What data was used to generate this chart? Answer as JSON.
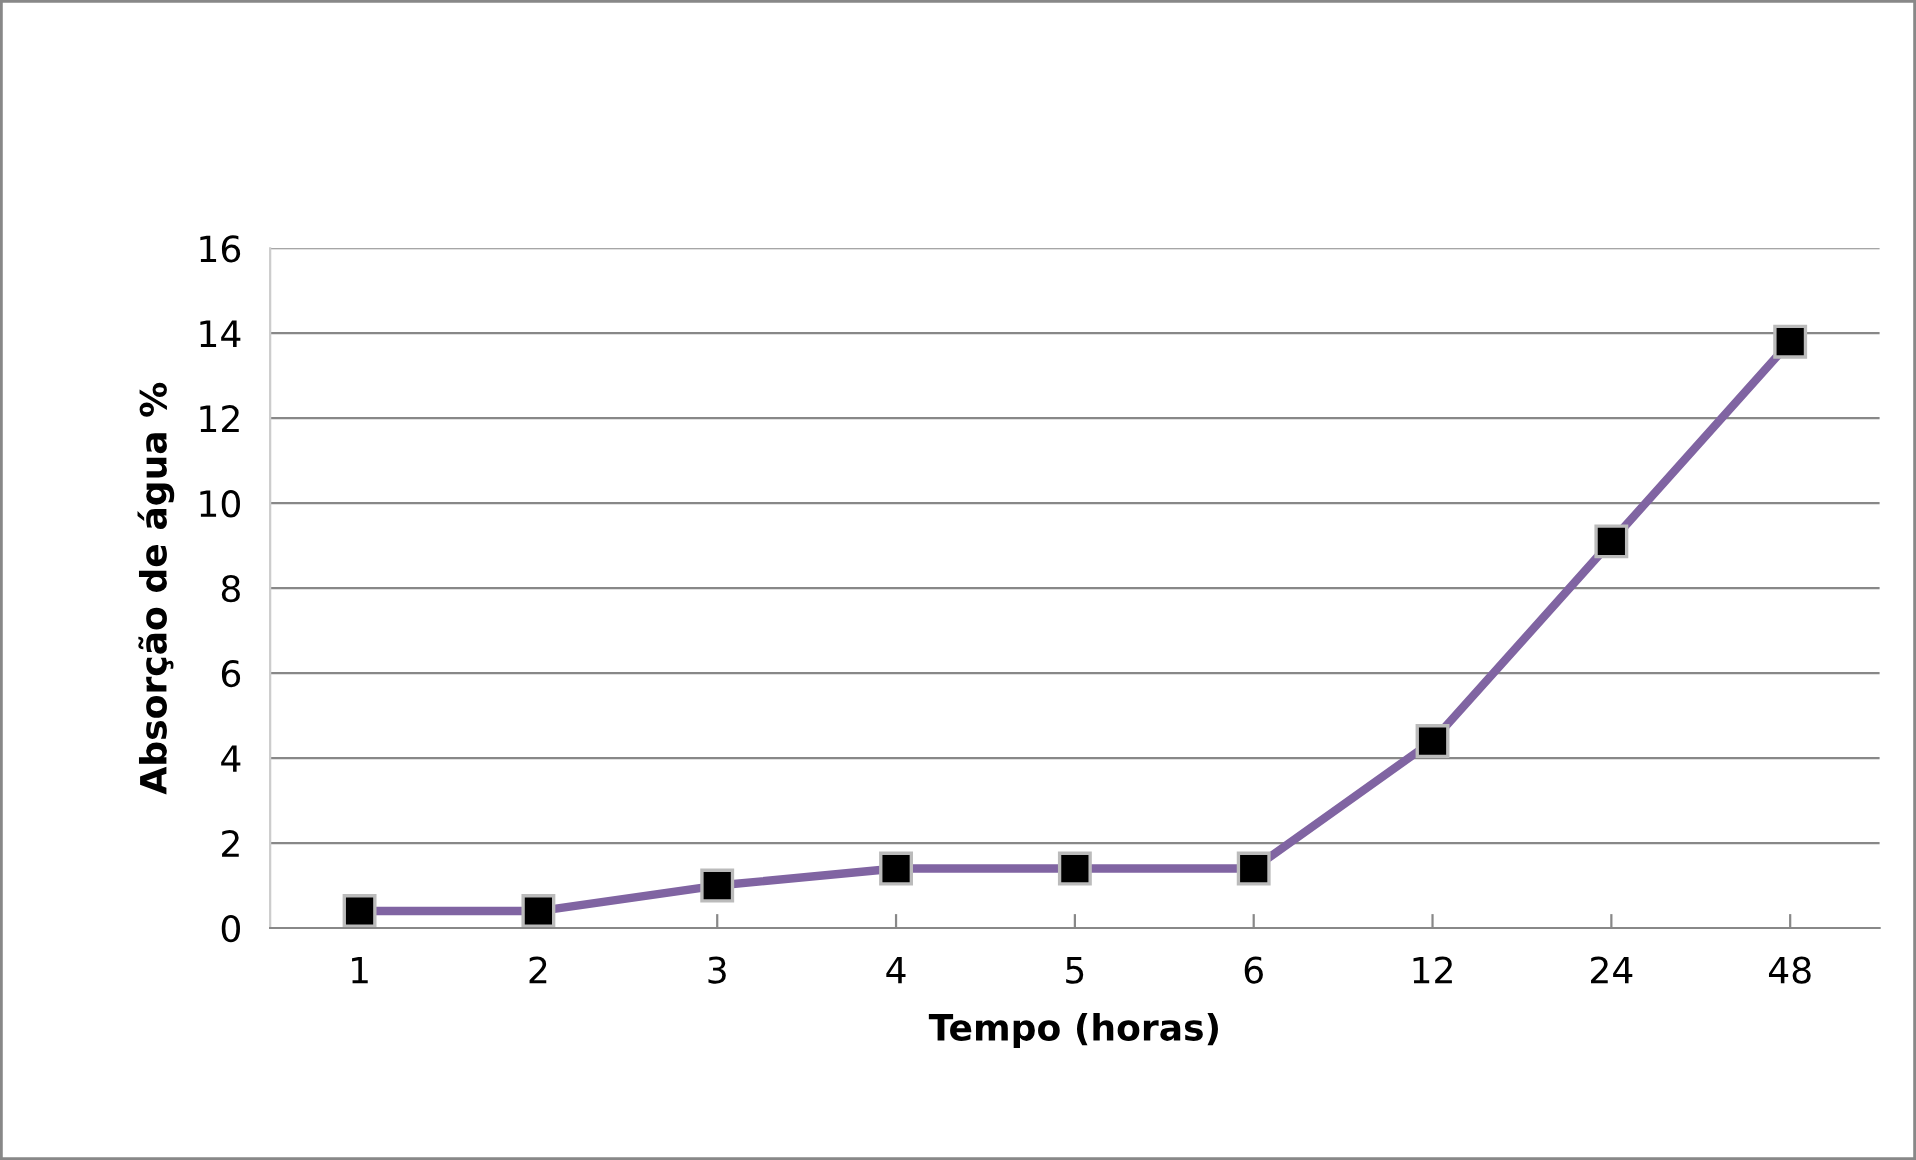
{
  "chart_data": {
    "type": "line",
    "xlabel": "Tempo (horas)",
    "ylabel": "Absorção de água %",
    "categories": [
      "1",
      "2",
      "3",
      "4",
      "5",
      "6",
      "12",
      "24",
      "48"
    ],
    "series": [
      {
        "color": "#8064a2",
        "values": [
          0.4,
          0.4,
          1.0,
          1.4,
          1.4,
          1.4,
          4.4,
          9.1,
          13.8
        ]
      }
    ],
    "ylim": [
      0,
      16
    ],
    "yticks": [
      0,
      2,
      4,
      6,
      8,
      10,
      12,
      14,
      16
    ],
    "grid": "y",
    "marker": "square",
    "line_style": "solid",
    "legend": false
  }
}
